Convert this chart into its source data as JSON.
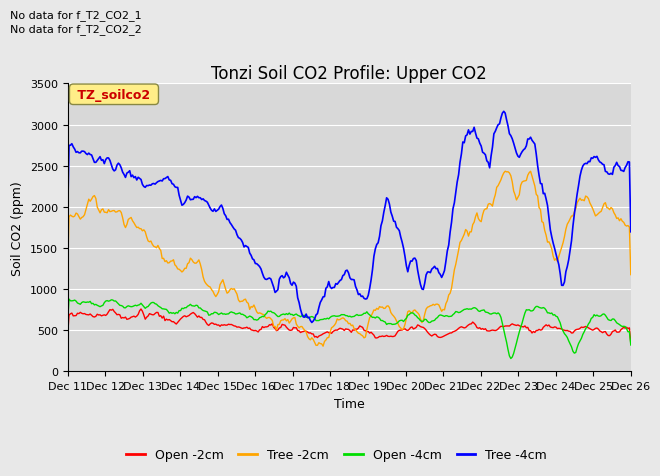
{
  "title": "Tonzi Soil CO2 Profile: Upper CO2",
  "ylabel": "Soil CO2 (ppm)",
  "xlabel": "Time",
  "no_data_text": [
    "No data for f_T2_CO2_1",
    "No data for f_T2_CO2_2"
  ],
  "legend_label": "TZ_soilco2",
  "ylim": [
    0,
    3500
  ],
  "background_color": "#e8e8e8",
  "plot_bg_color": "#d8d8d8",
  "series": {
    "open_2cm": {
      "label": "Open -2cm",
      "color": "#ff0000"
    },
    "tree_2cm": {
      "label": "Tree -2cm",
      "color": "#ffa500"
    },
    "open_4cm": {
      "label": "Open -4cm",
      "color": "#00dd00"
    },
    "tree_4cm": {
      "label": "Tree -4cm",
      "color": "#0000ff"
    }
  },
  "x_tick_labels": [
    "Dec 11",
    "Dec 12",
    "Dec 13",
    "Dec 14",
    "Dec 15",
    "Dec 16",
    "Dec 17",
    "Dec 18",
    "Dec 19",
    "Dec 20",
    "Dec 21",
    "Dec 22",
    "Dec 23",
    "Dec 24",
    "Dec 25",
    "Dec 26"
  ],
  "title_fontsize": 12,
  "axis_fontsize": 9,
  "tick_fontsize": 8
}
